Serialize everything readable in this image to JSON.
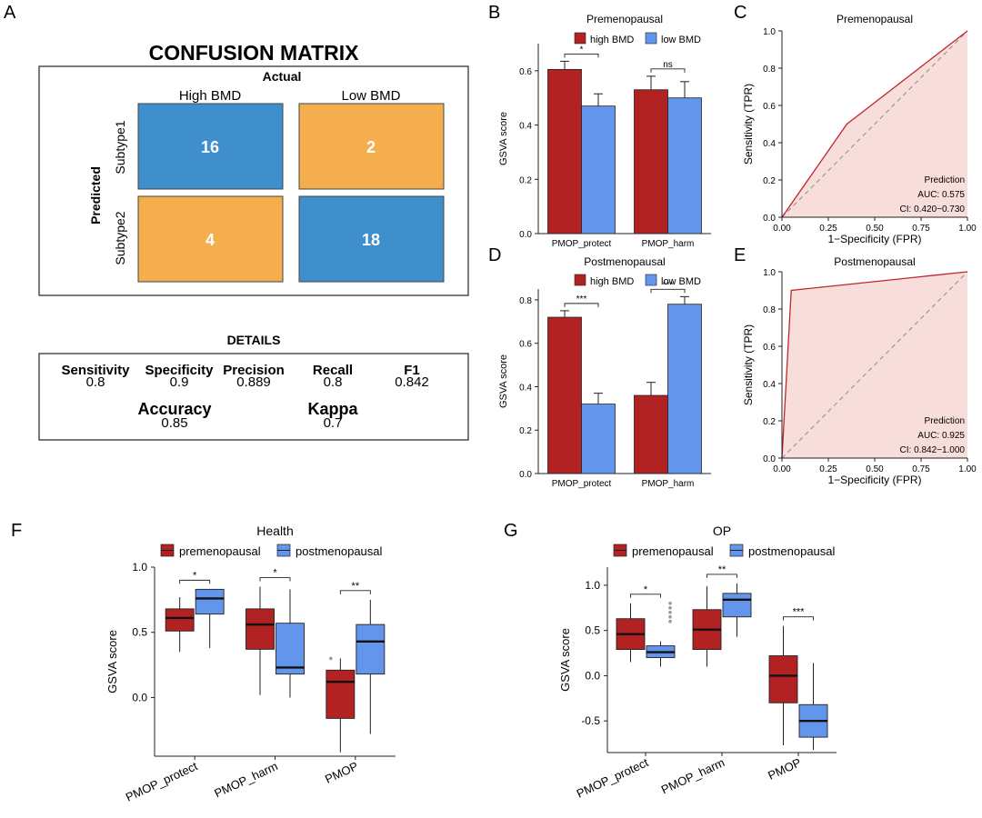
{
  "colors": {
    "red": "#B22222",
    "blue": "#6495ED",
    "cm_blue": "#3F8FCC",
    "cm_orange": "#F5AE4E",
    "roc_line": "#C0262C",
    "roc_fill": "#F7DEDA",
    "diag": "#8A8A8A"
  },
  "panel_labels": [
    "A",
    "B",
    "C",
    "D",
    "E",
    "F",
    "G"
  ],
  "confusion_matrix": {
    "title": "CONFUSION MATRIX",
    "actual_label": "Actual",
    "predicted_label": "Predicted",
    "columns": [
      "High BMD",
      "Low BMD"
    ],
    "rows": [
      "Subtype1",
      "Subtype2"
    ],
    "cells": [
      [
        16,
        2
      ],
      [
        4,
        18
      ]
    ]
  },
  "details": {
    "title": "DETAILS",
    "metrics": [
      {
        "name": "Sensitivity",
        "value": "0.8"
      },
      {
        "name": "Specificity",
        "value": "0.9"
      },
      {
        "name": "Precision",
        "value": "0.889"
      },
      {
        "name": "Recall",
        "value": "0.8"
      },
      {
        "name": "F1",
        "value": "0.842"
      }
    ],
    "summary": [
      {
        "name": "Accuracy",
        "value": "0.85"
      },
      {
        "name": "Kappa",
        "value": "0.7"
      }
    ]
  },
  "chart_data": [
    {
      "id": "B",
      "type": "bar",
      "title": "Premenopausal",
      "ylabel": "GSVA score",
      "categories": [
        "PMOP_protect",
        "PMOP_harm"
      ],
      "ylim": [
        0,
        0.7
      ],
      "yticks": [
        "0.0",
        "0.2",
        "0.4",
        "0.6"
      ],
      "series": [
        {
          "name": "high BMD",
          "values": [
            0.605,
            0.53
          ],
          "errors": [
            0.03,
            0.05
          ]
        },
        {
          "name": "low BMD",
          "values": [
            0.47,
            0.5
          ],
          "errors": [
            0.045,
            0.06
          ]
        }
      ],
      "significance": [
        "*",
        "ns"
      ]
    },
    {
      "id": "C",
      "type": "line",
      "title": "Premenopausal",
      "xlabel": "1−Specificity (FPR)",
      "ylabel": "Sensitivity (TPR)",
      "xticks": [
        "0.00",
        "0.25",
        "0.50",
        "0.75",
        "1.00"
      ],
      "yticks": [
        "0.0",
        "0.2",
        "0.4",
        "0.6",
        "0.8",
        "1.0"
      ],
      "x": [
        0,
        0.35,
        1
      ],
      "y": [
        0,
        0.5,
        1
      ],
      "legend": {
        "title": "Prediction",
        "auc": "AUC: 0.575",
        "ci": "CI: 0.420−0.730"
      }
    },
    {
      "id": "D",
      "type": "bar",
      "title": "Postmenopausal",
      "ylabel": "GSVA score",
      "categories": [
        "PMOP_protect",
        "PMOP_harm"
      ],
      "ylim": [
        0,
        0.85
      ],
      "yticks": [
        "0.0",
        "0.2",
        "0.4",
        "0.6",
        "0.8"
      ],
      "series": [
        {
          "name": "high BMD",
          "values": [
            0.72,
            0.36
          ],
          "errors": [
            0.03,
            0.06
          ]
        },
        {
          "name": "low BMD",
          "values": [
            0.32,
            0.78
          ],
          "errors": [
            0.05,
            0.035
          ]
        }
      ],
      "significance": [
        "***",
        "***"
      ]
    },
    {
      "id": "E",
      "type": "line",
      "title": "Postmenopausal",
      "xlabel": "1−Specificity (FPR)",
      "ylabel": "Sensitivity (TPR)",
      "xticks": [
        "0.00",
        "0.25",
        "0.50",
        "0.75",
        "1.00"
      ],
      "yticks": [
        "0.0",
        "0.2",
        "0.4",
        "0.6",
        "0.8",
        "1.0"
      ],
      "x": [
        0,
        0.05,
        1
      ],
      "y": [
        0,
        0.9,
        1
      ],
      "legend": {
        "title": "Prediction",
        "auc": "AUC: 0.925",
        "ci": "CI: 0.842−1.000"
      }
    },
    {
      "id": "F",
      "type": "box",
      "title": "Health",
      "ylabel": "GSVA score",
      "categories": [
        "PMOP_protect",
        "PMOP_harm",
        "PMOP"
      ],
      "ylim": [
        -0.45,
        1.0
      ],
      "yticks": [
        "0.0",
        "0.5",
        "1.0"
      ],
      "legend": [
        "premenopausal",
        "postmenopausal"
      ],
      "boxes": [
        {
          "min": 0.35,
          "q1": 0.51,
          "median": 0.61,
          "q3": 0.68,
          "max": 0.77
        },
        {
          "min": 0.38,
          "q1": 0.64,
          "median": 0.76,
          "q3": 0.83,
          "max": 0.83
        },
        {
          "min": 0.02,
          "q1": 0.37,
          "median": 0.56,
          "q3": 0.68,
          "max": 0.85
        },
        {
          "min": 0.0,
          "q1": 0.18,
          "median": 0.23,
          "q3": 0.57,
          "max": 0.83
        },
        {
          "min": -0.42,
          "q1": -0.16,
          "median": 0.12,
          "q3": 0.21,
          "max": 0.3
        },
        {
          "min": -0.28,
          "q1": 0.18,
          "median": 0.43,
          "q3": 0.56,
          "max": 0.75
        }
      ],
      "outliers": [
        [],
        [],
        [],
        [],
        [
          0.3
        ],
        []
      ],
      "significance": [
        "*",
        "*",
        "**"
      ]
    },
    {
      "id": "G",
      "type": "box",
      "title": "OP",
      "ylabel": "GSVA score",
      "categories": [
        "PMOP_protect",
        "PMOP_harm",
        "PMOP"
      ],
      "ylim": [
        -0.85,
        1.2
      ],
      "yticks": [
        "-0.5",
        "0.0",
        "0.5",
        "1.0"
      ],
      "legend": [
        "premenopausal",
        "postmenopausal"
      ],
      "boxes": [
        {
          "min": 0.15,
          "q1": 0.29,
          "median": 0.46,
          "q3": 0.63,
          "max": 0.8
        },
        {
          "min": 0.1,
          "q1": 0.2,
          "median": 0.26,
          "q3": 0.33,
          "max": 0.38
        },
        {
          "min": 0.1,
          "q1": 0.29,
          "median": 0.51,
          "q3": 0.73,
          "max": 0.99
        },
        {
          "min": 0.43,
          "q1": 0.65,
          "median": 0.84,
          "q3": 0.91,
          "max": 1.02
        },
        {
          "min": -0.77,
          "q1": -0.3,
          "median": 0.0,
          "q3": 0.22,
          "max": 0.55
        },
        {
          "min": -0.82,
          "q1": -0.68,
          "median": -0.5,
          "q3": -0.32,
          "max": 0.14
        }
      ],
      "outliers": [
        [],
        [
          0.6,
          0.65,
          0.7,
          0.75,
          0.8
        ],
        [],
        [],
        [],
        []
      ],
      "significance": [
        "*",
        "**",
        "***"
      ]
    }
  ]
}
